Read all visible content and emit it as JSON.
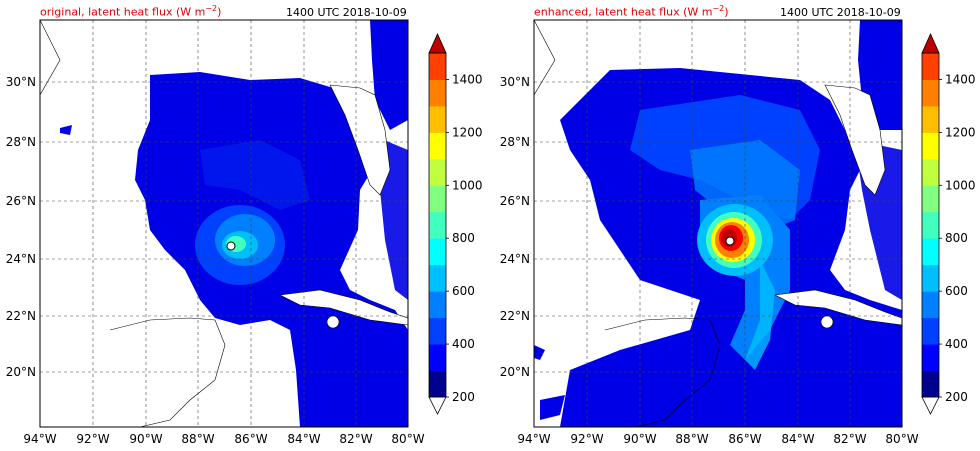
{
  "panels": [
    {
      "id": "original",
      "title_left": "original, latent heat flux (W m",
      "title_unit_exp": "−2",
      "title_close": ")",
      "title_right": "1400 UTC 2018-10-09"
    },
    {
      "id": "enhanced",
      "title_left": "enhanced, latent heat flux (W m",
      "title_unit_exp": "−2",
      "title_close": ")",
      "title_right": "1400 UTC 2018-10-09"
    }
  ],
  "lon_labels": [
    "94°W",
    "92°W",
    "90°W",
    "88°W",
    "86°W",
    "84°W",
    "82°W",
    "80°W"
  ],
  "lat_labels": [
    "30°N",
    "28°N",
    "26°N",
    "24°N",
    "22°N",
    "20°N"
  ],
  "colorbar": {
    "tick_labels": [
      "200",
      "400",
      "600",
      "800",
      "1000",
      "1200",
      "1400"
    ],
    "levels": [
      200,
      300,
      400,
      500,
      600,
      700,
      800,
      900,
      1000,
      1100,
      1200,
      1300,
      1400,
      1500
    ],
    "colors": [
      "#00008f",
      "#0000ff",
      "#0040ff",
      "#0080ff",
      "#00bfff",
      "#00ffff",
      "#40ffbf",
      "#80ff80",
      "#bfff40",
      "#ffff00",
      "#ffbf00",
      "#ff8000",
      "#ff4000",
      "#ff0000",
      "#bf0000"
    ]
  },
  "colors": {
    "title_red": "#e00000",
    "background_field": "#0000e6"
  }
}
